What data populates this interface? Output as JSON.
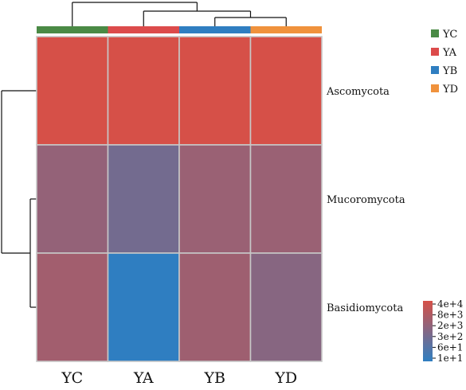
{
  "chart_data": {
    "type": "heatmap",
    "rows": [
      "Ascomycota",
      "Mucoromycota",
      "Basidiomycota"
    ],
    "columns": [
      "YC",
      "YA",
      "YB",
      "YD"
    ],
    "values": [
      [
        40000,
        40000,
        40000,
        40000
      ],
      [
        1500,
        300,
        2000,
        2000
      ],
      [
        3000,
        10,
        2500,
        800
      ]
    ],
    "group_colors": {
      "YC": "#4a8a45",
      "YA": "#dc4b4b",
      "YB": "#2f7ec1",
      "YD": "#f0923c"
    },
    "legend": {
      "position": "top-right",
      "entries": [
        "YC",
        "YA",
        "YB",
        "YD"
      ]
    },
    "color_scale": {
      "labels": [
        "4e+4",
        "8e+3",
        "2e+3",
        "3e+2",
        "6e+1",
        "1e+1"
      ],
      "min": 10,
      "max": 40000,
      "log": true,
      "low_color": "#2f7ec1",
      "high_color": "#d65048"
    },
    "column_dendrogram": "YC | (YA | (YB, YD))",
    "row_dendrogram": "Ascomycota | (Mucoromycota, Basidiomycota)"
  }
}
